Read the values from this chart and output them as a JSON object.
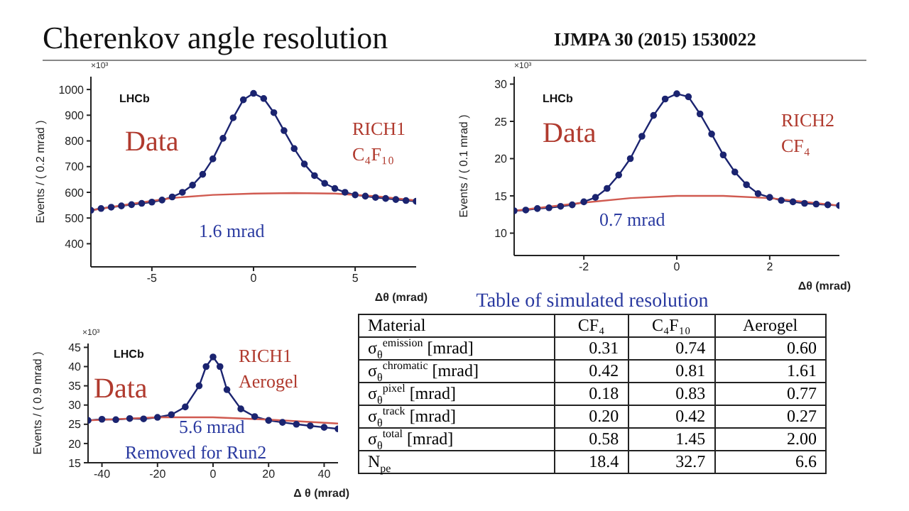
{
  "chart_data": [
    {
      "type": "line",
      "title": "Cherenkov angle resolution",
      "ylabel": "Events / ( 0.2 mrad )",
      "xlabel": "Δθ (mrad)",
      "annotations": [
        "×10³",
        "LHCb",
        "Data",
        "RICH1",
        "C₄F₁₀",
        "1.6 mrad"
      ],
      "xlim": [
        -8,
        8
      ],
      "xticks": [
        -5,
        0,
        5
      ],
      "ylim": [
        310,
        1050
      ],
      "yticks": [
        400,
        500,
        600,
        700,
        800,
        900,
        1000
      ],
      "series": [
        {
          "type": "line",
          "marker": "circle",
          "color": "#1b2470",
          "x": [
            -8,
            -7.5,
            -7,
            -6.5,
            -6,
            -5.5,
            -5,
            -4.5,
            -4,
            -3.5,
            -3,
            -2.5,
            -2,
            -1.5,
            -1,
            -0.5,
            0,
            0.5,
            1,
            1.5,
            2,
            2.5,
            3,
            3.5,
            4,
            4.5,
            5,
            5.5,
            6,
            6.5,
            7,
            7.5,
            8
          ],
          "values": [
            530,
            537,
            542,
            547,
            552,
            557,
            562,
            570,
            582,
            600,
            628,
            670,
            730,
            810,
            890,
            960,
            985,
            965,
            910,
            840,
            770,
            710,
            665,
            635,
            615,
            600,
            590,
            585,
            580,
            576,
            572,
            568,
            565
          ]
        },
        {
          "type": "line",
          "marker": "none",
          "color": "#d05a50",
          "x": [
            -8,
            -6,
            -4,
            -2,
            0,
            2,
            4,
            6,
            8
          ],
          "values": [
            530,
            555,
            578,
            590,
            595,
            597,
            595,
            585,
            568
          ]
        }
      ]
    },
    {
      "type": "line",
      "subtitle": "IJMPA 30 (2015) 1530022",
      "ylabel": "Events / ( 0.1 mrad )",
      "xlabel": "Δθ (mrad)",
      "annotations": [
        "×10³",
        "LHCb",
        "Data",
        "RICH2",
        "CF₄",
        "0.7 mrad"
      ],
      "xlim": [
        -3.5,
        3.5
      ],
      "xticks": [
        -2,
        0,
        2
      ],
      "ylim": [
        7,
        31
      ],
      "yticks": [
        10,
        15,
        20,
        25,
        30
      ],
      "series": [
        {
          "type": "line",
          "marker": "circle",
          "color": "#1b2470",
          "x": [
            -3.5,
            -3.25,
            -3,
            -2.75,
            -2.5,
            -2.25,
            -2,
            -1.75,
            -1.5,
            -1.25,
            -1,
            -0.75,
            -0.5,
            -0.25,
            0,
            0.25,
            0.5,
            0.75,
            1,
            1.25,
            1.5,
            1.75,
            2,
            2.25,
            2.5,
            2.75,
            3,
            3.25,
            3.5
          ],
          "values": [
            13,
            13.1,
            13.3,
            13.4,
            13.6,
            13.8,
            14.2,
            14.8,
            16,
            17.8,
            20,
            23,
            25.8,
            28,
            28.7,
            28.3,
            26,
            23.3,
            20.5,
            18.2,
            16.5,
            15.3,
            14.8,
            14.4,
            14.2,
            14,
            13.9,
            13.8,
            13.7
          ]
        },
        {
          "type": "line",
          "marker": "none",
          "color": "#d05a50",
          "x": [
            -3.5,
            -2,
            -1,
            0,
            1,
            2,
            3.5
          ],
          "values": [
            13,
            14.1,
            14.7,
            15,
            15,
            14.7,
            13.7
          ]
        }
      ]
    },
    {
      "type": "line",
      "ylabel": "Events / ( 0.9 mrad )",
      "xlabel": "Δ θ (mrad)",
      "annotations": [
        "×10³",
        "LHCb",
        "Data",
        "RICH1",
        "Aerogel",
        "5.6 mrad",
        "Removed for Run2"
      ],
      "xlim": [
        -45,
        45
      ],
      "xticks": [
        -40,
        -20,
        0,
        20,
        40
      ],
      "ylim": [
        15,
        46
      ],
      "yticks": [
        15,
        20,
        25,
        30,
        35,
        40,
        45
      ],
      "series": [
        {
          "type": "line",
          "marker": "circle",
          "color": "#1b2470",
          "x": [
            -45,
            -40,
            -35,
            -30,
            -25,
            -20,
            -15,
            -10,
            -5,
            -2.5,
            0,
            2.5,
            5,
            10,
            15,
            20,
            25,
            30,
            35,
            40,
            45
          ],
          "values": [
            26,
            26.3,
            26.2,
            26.5,
            26.4,
            26.8,
            27.5,
            29.5,
            35,
            40,
            42.5,
            40,
            34,
            29,
            27,
            26,
            25.5,
            25,
            24.6,
            24.2,
            23.8
          ]
        },
        {
          "type": "line",
          "marker": "none",
          "color": "#d05a50",
          "x": [
            -45,
            -20,
            0,
            20,
            45
          ],
          "values": [
            26,
            26.8,
            26.8,
            26.2,
            25.2
          ]
        }
      ]
    },
    {
      "type": "other",
      "title": "Table of simulated resolution",
      "categories": [
        "Material",
        "CF₄",
        "C₄F₁₀",
        "Aerogel"
      ],
      "y_categories": [
        "σ$_{θ}$$^{emission}$ [mrad]",
        "σ$_{θ}$$^{chromatic}$ [mrad]",
        "σ$_{θ}$$^{pixel}$ [mrad]",
        "σ$_{θ}$$^{track}$ [mrad]",
        "σ$_{θ}$$^{total}$ [mrad]",
        "N$_{pe}$"
      ],
      "cell_labels": [
        [
          "0.31",
          "0.74",
          "0.60"
        ],
        [
          "0.42",
          "0.81",
          "1.61"
        ],
        [
          "0.18",
          "0.83",
          "0.77"
        ],
        [
          "0.20",
          "0.42",
          "0.27"
        ],
        [
          "0.58",
          "1.45",
          "2.00"
        ],
        [
          "18.4",
          "32.7",
          "6.6"
        ]
      ]
    }
  ]
}
